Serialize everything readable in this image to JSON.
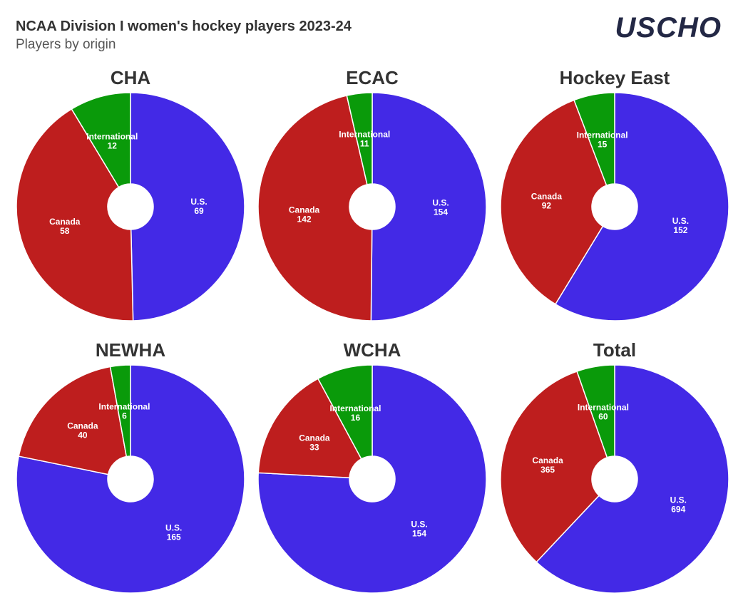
{
  "header": {
    "title": "NCAA Division I women's hockey players 2023-24",
    "subtitle": "Players by origin",
    "logo": "USCHO"
  },
  "chart_data": [
    {
      "type": "pie",
      "title": "CHA",
      "categories": [
        "U.S.",
        "Canada",
        "International"
      ],
      "values": [
        69,
        58,
        12
      ],
      "colors": [
        "#4329e6",
        "#be1e1e",
        "#0a9a0a"
      ]
    },
    {
      "type": "pie",
      "title": "ECAC",
      "categories": [
        "U.S.",
        "Canada",
        "International"
      ],
      "values": [
        154,
        142,
        11
      ],
      "colors": [
        "#4329e6",
        "#be1e1e",
        "#0a9a0a"
      ]
    },
    {
      "type": "pie",
      "title": "Hockey East",
      "categories": [
        "U.S.",
        "Canada",
        "International"
      ],
      "values": [
        152,
        92,
        15
      ],
      "colors": [
        "#4329e6",
        "#be1e1e",
        "#0a9a0a"
      ]
    },
    {
      "type": "pie",
      "title": "NEWHA",
      "categories": [
        "U.S.",
        "Canada",
        "International"
      ],
      "values": [
        165,
        40,
        6
      ],
      "colors": [
        "#4329e6",
        "#be1e1e",
        "#0a9a0a"
      ]
    },
    {
      "type": "pie",
      "title": "WCHA",
      "categories": [
        "U.S.",
        "Canada",
        "International"
      ],
      "values": [
        154,
        33,
        16
      ],
      "colors": [
        "#4329e6",
        "#be1e1e",
        "#0a9a0a"
      ]
    },
    {
      "type": "pie",
      "title": "Total",
      "categories": [
        "U.S.",
        "Canada",
        "International"
      ],
      "values": [
        694,
        365,
        60
      ],
      "colors": [
        "#4329e6",
        "#be1e1e",
        "#0a9a0a"
      ]
    }
  ]
}
